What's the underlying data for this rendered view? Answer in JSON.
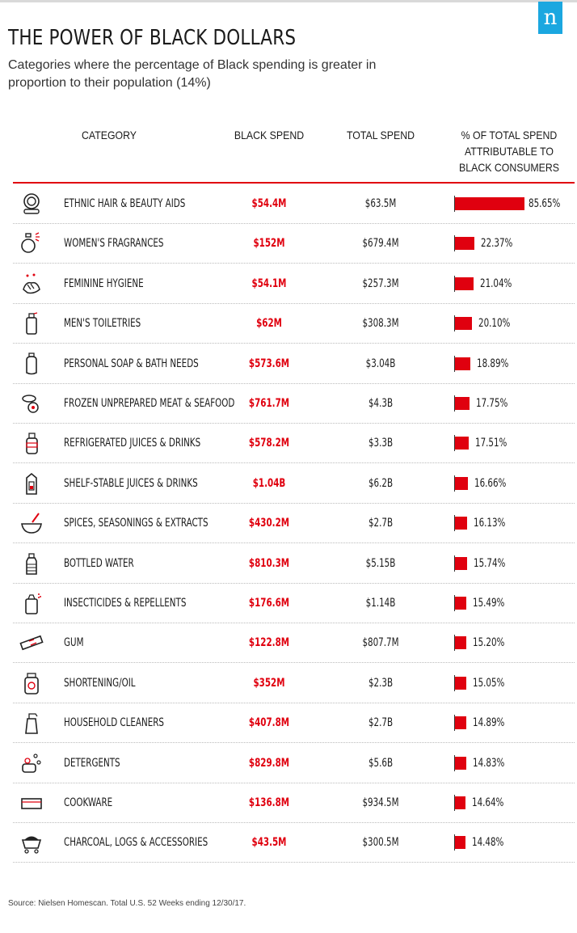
{
  "header": {
    "title": "THE POWER OF BLACK DOLLARS",
    "subtitle": "Categories where the percentage of Black spending is greater in proportion to their population (14%)",
    "logo_text": "n"
  },
  "columns": {
    "category": "CATEGORY",
    "black_spend": "BLACK SPEND",
    "total_spend": "TOTAL SPEND",
    "percent": "% OF TOTAL SPEND ATTRIBUTABLE TO BLACK CONSUMERS"
  },
  "colors": {
    "accent": "#e0000f",
    "logo": "#1ba7e0"
  },
  "chart_data": {
    "type": "bar",
    "title": "THE POWER OF BLACK DOLLARS",
    "ylabel": "% OF TOTAL SPEND ATTRIBUTABLE TO BLACK CONSUMERS",
    "ylim": [
      0,
      100
    ],
    "rows": [
      {
        "category": "ETHNIC HAIR & BEAUTY AIDS",
        "black": "$54.4M",
        "total": "$63.5M",
        "pct": 85.65,
        "pct_label": "85.65%",
        "icon": "compact-mirror-icon"
      },
      {
        "category": "WOMEN'S FRAGRANCES",
        "black": "$152M",
        "total": "$679.4M",
        "pct": 22.37,
        "pct_label": "22.37%",
        "icon": "perfume-bottle-icon"
      },
      {
        "category": "FEMININE HYGIENE",
        "black": "$54.1M",
        "total": "$257.3M",
        "pct": 21.04,
        "pct_label": "21.04%",
        "icon": "washing-hands-icon"
      },
      {
        "category": "MEN'S TOILETRIES",
        "black": "$62M",
        "total": "$308.3M",
        "pct": 20.1,
        "pct_label": "20.10%",
        "icon": "spray-bottle-icon"
      },
      {
        "category": "PERSONAL SOAP & BATH NEEDS",
        "black": "$573.6M",
        "total": "$3.04B",
        "pct": 18.89,
        "pct_label": "18.89%",
        "icon": "soap-bottle-icon"
      },
      {
        "category": "FROZEN UNPREPARED MEAT & SEAFOOD",
        "black": "$761.7M",
        "total": "$4.3B",
        "pct": 17.75,
        "pct_label": "17.75%",
        "icon": "meat-fish-icon"
      },
      {
        "category": "REFRIGERATED JUICES & DRINKS",
        "black": "$578.2M",
        "total": "$3.3B",
        "pct": 17.51,
        "pct_label": "17.51%",
        "icon": "juice-bottle-icon"
      },
      {
        "category": "SHELF-STABLE JUICES & DRINKS",
        "black": "$1.04B",
        "total": "$6.2B",
        "pct": 16.66,
        "pct_label": "16.66%",
        "icon": "juice-carton-icon"
      },
      {
        "category": "SPICES, SEASONINGS & EXTRACTS",
        "black": "$430.2M",
        "total": "$2.7B",
        "pct": 16.13,
        "pct_label": "16.13%",
        "icon": "mortar-pestle-icon"
      },
      {
        "category": "BOTTLED WATER",
        "black": "$810.3M",
        "total": "$5.15B",
        "pct": 15.74,
        "pct_label": "15.74%",
        "icon": "water-bottle-icon"
      },
      {
        "category": "INSECTICIDES & REPELLENTS",
        "black": "$176.6M",
        "total": "$1.14B",
        "pct": 15.49,
        "pct_label": "15.49%",
        "icon": "spray-can-icon"
      },
      {
        "category": "GUM",
        "black": "$122.8M",
        "total": "$807.7M",
        "pct": 15.2,
        "pct_label": "15.20%",
        "icon": "gum-stick-icon"
      },
      {
        "category": "SHORTENING/OIL",
        "black": "$352M",
        "total": "$2.3B",
        "pct": 15.05,
        "pct_label": "15.05%",
        "icon": "oil-jar-icon"
      },
      {
        "category": "HOUSEHOLD CLEANERS",
        "black": "$407.8M",
        "total": "$2.7B",
        "pct": 14.89,
        "pct_label": "14.89%",
        "icon": "cleaner-bottle-icon"
      },
      {
        "category": "DETERGENTS",
        "black": "$829.8M",
        "total": "$5.6B",
        "pct": 14.83,
        "pct_label": "14.83%",
        "icon": "soap-bubbles-icon"
      },
      {
        "category": "COOKWARE",
        "black": "$136.8M",
        "total": "$934.5M",
        "pct": 14.64,
        "pct_label": "14.64%",
        "icon": "baking-pan-icon"
      },
      {
        "category": "CHARCOAL, LOGS & ACCESSORIES",
        "black": "$43.5M",
        "total": "$300.5M",
        "pct": 14.48,
        "pct_label": "14.48%",
        "icon": "charcoal-cart-icon"
      }
    ]
  },
  "footer": {
    "source": "Source: Nielsen Homescan. Total U.S. 52 Weeks ending 12/30/17."
  }
}
